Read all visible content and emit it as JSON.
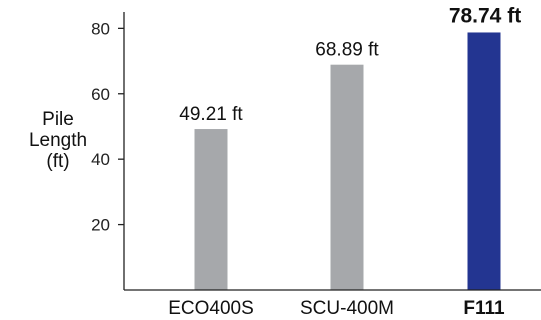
{
  "chart_data": {
    "type": "bar",
    "categories": [
      "ECO400S",
      "SCU-400M",
      "F111"
    ],
    "values": [
      49.21,
      68.89,
      78.74
    ],
    "value_labels": [
      "49.21 ft",
      "68.89 ft",
      "78.74 ft"
    ],
    "ylabel": [
      "Pile",
      "Length",
      "(ft)"
    ],
    "ylim": [
      0,
      85
    ],
    "yticks": [
      20,
      40,
      60,
      80
    ],
    "highlight_index": 2,
    "colors": {
      "default": "#a6a8ab",
      "highlight": "#233591"
    },
    "grid": false
  }
}
